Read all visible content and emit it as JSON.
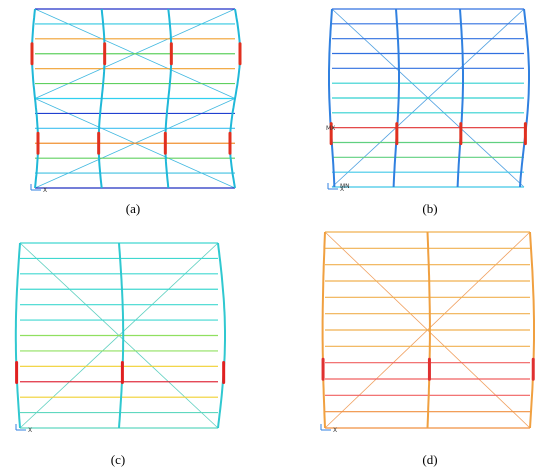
{
  "panels": [
    {
      "caption": "(a)",
      "axis_label": "X"
    },
    {
      "caption": "(b)",
      "axis_label": "X",
      "max_label": "MX",
      "min_label": "MN"
    },
    {
      "caption": "(c)",
      "axis_label": "X"
    },
    {
      "caption": "(d)",
      "axis_label": "X"
    }
  ]
}
